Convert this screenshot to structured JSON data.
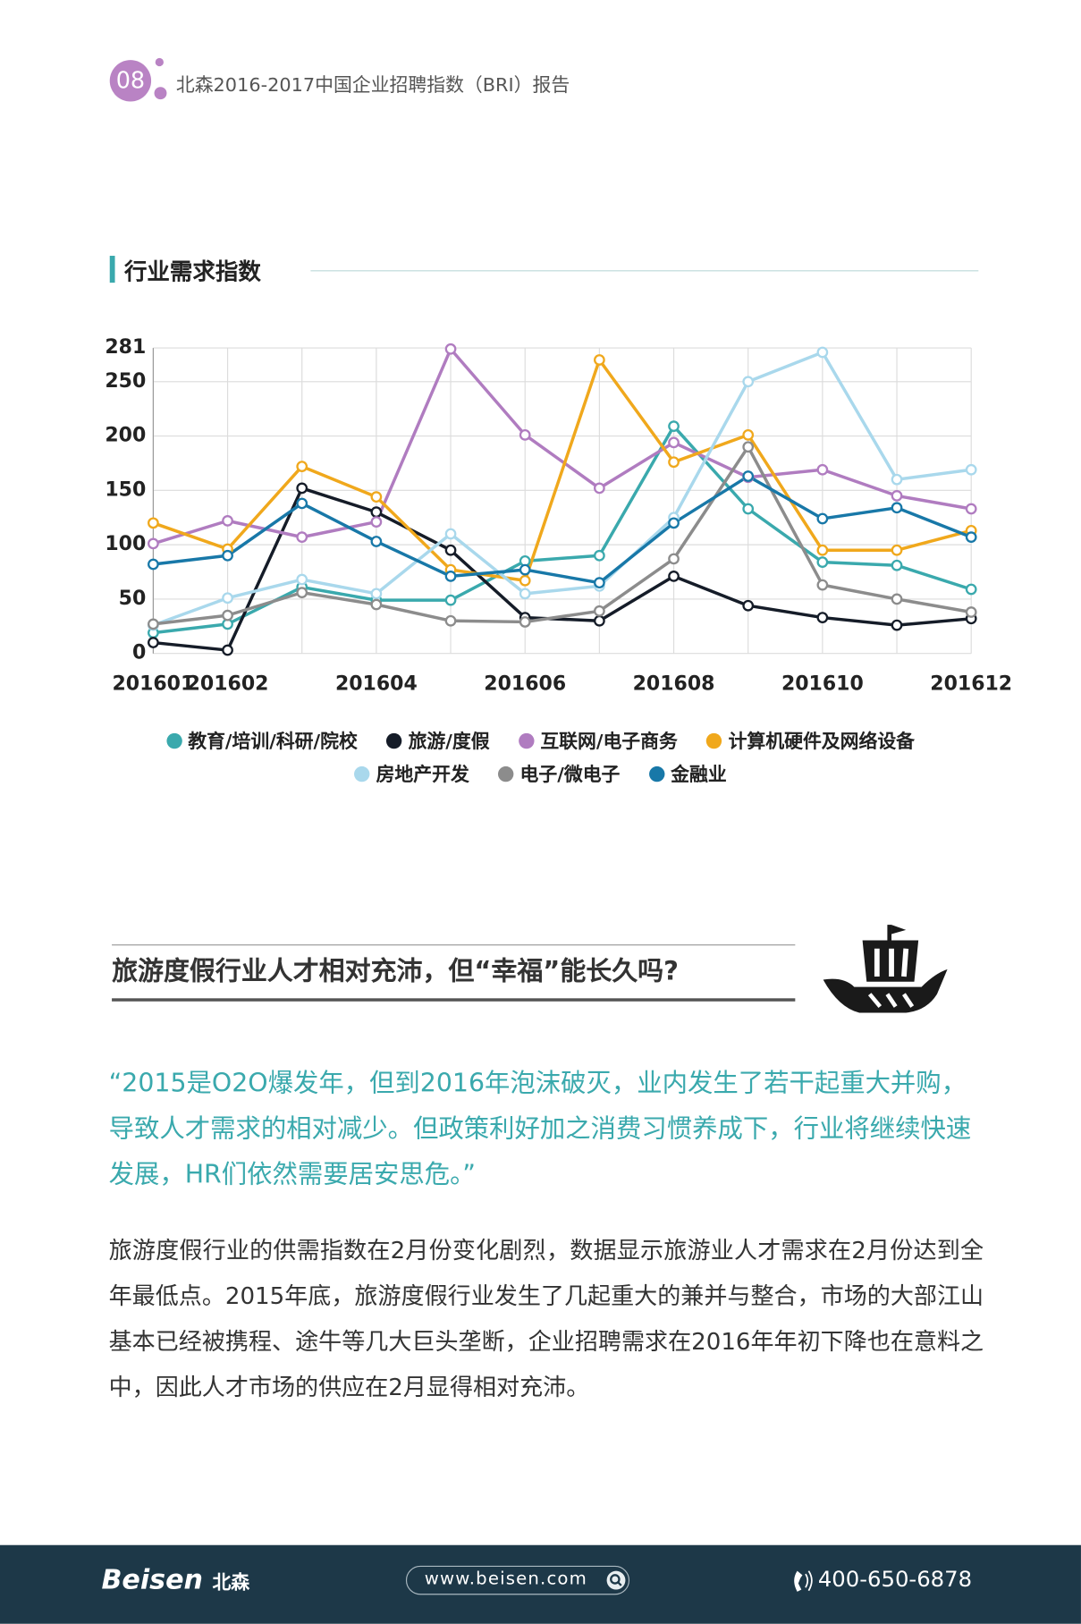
{
  "header": {
    "page_number": "08",
    "title": "北森2016-2017中国企业招聘指数（BRI）报告"
  },
  "section_title": "行业需求指数",
  "chart_data": {
    "type": "line",
    "categories": [
      "201601",
      "201602",
      null,
      "201604",
      null,
      "201606",
      null,
      "201608",
      null,
      "201610",
      null,
      "201612"
    ],
    "ylim": [
      0,
      281
    ],
    "yticks": [
      0,
      50,
      100,
      150,
      200,
      250,
      281
    ],
    "grid": true,
    "series": [
      {
        "name": "教育/培训/科研/院校",
        "color": "#3aa9ad",
        "values": [
          19,
          27,
          61,
          49,
          49,
          85,
          90,
          209,
          133,
          84,
          81,
          59
        ]
      },
      {
        "name": "旅游/度假",
        "color": "#151c28",
        "values": [
          10,
          3,
          152,
          130,
          95,
          33,
          30,
          71,
          44,
          33,
          26,
          32
        ]
      },
      {
        "name": "互联网/电子商务",
        "color": "#b07cc0",
        "values": [
          101,
          122,
          107,
          121,
          280,
          201,
          152,
          194,
          162,
          169,
          145,
          133
        ]
      },
      {
        "name": "计算机硬件及网络设备",
        "color": "#f0a81c",
        "values": [
          120,
          96,
          172,
          144,
          77,
          67,
          270,
          176,
          201,
          95,
          95,
          113
        ]
      },
      {
        "name": "房地产开发",
        "color": "#a9d8ec",
        "values": [
          26,
          51,
          68,
          55,
          110,
          55,
          62,
          125,
          250,
          277,
          160,
          169
        ]
      },
      {
        "name": "电子/微电子",
        "color": "#8c8c8c",
        "values": [
          27,
          35,
          56,
          45,
          30,
          29,
          39,
          87,
          190,
          63,
          50,
          38
        ]
      },
      {
        "name": "金融业",
        "color": "#1878a8",
        "values": [
          82,
          90,
          138,
          103,
          71,
          77,
          65,
          120,
          163,
          124,
          134,
          107
        ]
      }
    ]
  },
  "article": {
    "heading": "旅游度假行业人才相对充沛，但“幸福”能长久吗?",
    "quote": "“2015是O2O爆发年，但到2016年泡沫破灭，业内发生了若干起重大并购，导致人才需求的相对减少。但政策利好加之消费习惯养成下，行业将继续快速发展，HR们依然需要居安思危。”",
    "body": "旅游度假行业的供需指数在2月份变化剧烈，数据显示旅游业人才需求在2月份达到全年最低点。2015年底，旅游度假行业发生了几起重大的兼并与整合，市场的大部江山基本已经被携程、途牛等几大巨头垄断，企业招聘需求在2016年年初下降也在意料之中，因此人才市场的供应在2月显得相对充沛。"
  },
  "footer": {
    "brand": "Beisen",
    "brand_cn": "北森",
    "website": "www.beisen.com",
    "phone": "400-650-6878"
  }
}
